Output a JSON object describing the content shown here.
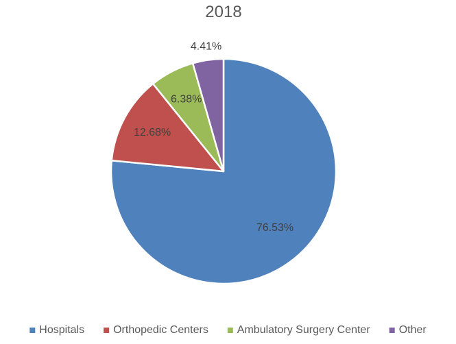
{
  "chart_data": {
    "type": "pie",
    "title": "2018",
    "categories": [
      "Hospitals",
      "Orthopedic Centers",
      "Ambulatory Surgery Center",
      "Other"
    ],
    "values": [
      76.53,
      12.68,
      6.38,
      4.41
    ],
    "labels": [
      "76.53%",
      "12.68%",
      "6.38%",
      "4.41%"
    ],
    "colors": [
      "#4f81bd",
      "#c0504d",
      "#9bbb59",
      "#8064a2"
    ],
    "start_angle_deg": 0,
    "direction": "clockwise",
    "legend_position": "bottom"
  }
}
